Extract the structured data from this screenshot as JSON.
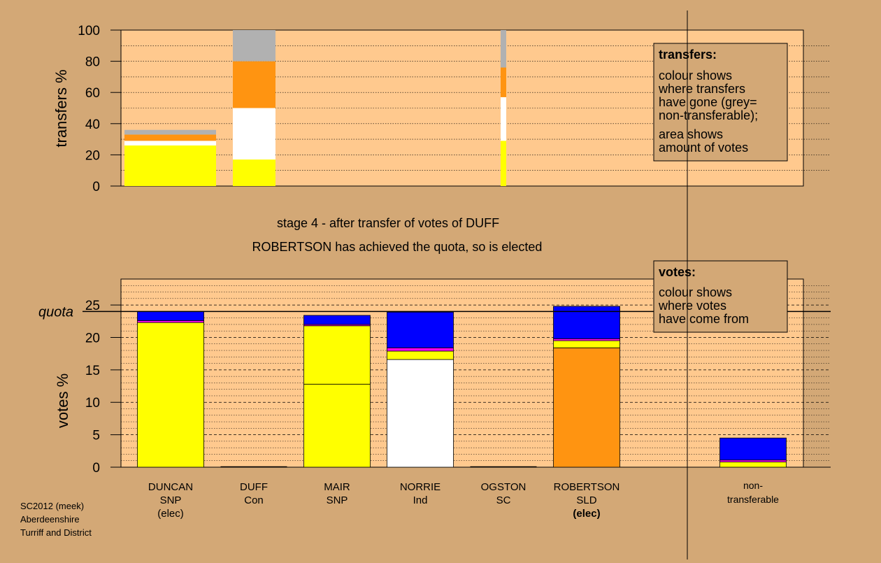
{
  "colors": {
    "background": "#d3a876",
    "plot_bg": "#ffc98e",
    "SNP": "#ffff00",
    "Con": "#0000ff",
    "Ind": "#ffffff",
    "SC": "#ff00ff",
    "SLD": "#ff9411",
    "nontransferable": "#b1b1b1",
    "line": "#000000"
  },
  "stage_text": {
    "line1": "stage 4 - after transfer of votes of DUFF",
    "line2": "ROBERTSON has achieved the quota, so is elected"
  },
  "footer": {
    "line1": "SC2012 (meek)",
    "line2": "Aberdeenshire",
    "line3": "Turriff and District"
  },
  "candidates": [
    {
      "name": "DUNCAN",
      "party": "SNP",
      "status": "(elec)"
    },
    {
      "name": "DUFF",
      "party": "Con",
      "status": ""
    },
    {
      "name": "MAIR",
      "party": "SNP",
      "status": ""
    },
    {
      "name": "NORRIE",
      "party": "Ind",
      "status": ""
    },
    {
      "name": "OGSTON",
      "party": "SC",
      "status": ""
    },
    {
      "name": "ROBERTSON",
      "party": "SLD",
      "status": "(elec)"
    },
    {
      "name": "non-",
      "party": "transferable",
      "status": ""
    }
  ],
  "chart_data": [
    {
      "type": "bar",
      "stacked": true,
      "ylabel": "transfers %",
      "ylim": [
        0,
        100
      ],
      "yticks": [
        0,
        20,
        40,
        60,
        80,
        100
      ],
      "legend": {
        "title": "transfers:",
        "line1": "colour shows",
        "line2": "where transfers",
        "line3": "have gone (grey=",
        "line4": "non-transferable);",
        "line5": "area shows",
        "line6": "amount of votes"
      },
      "bars": [
        {
          "source": "DUNCAN",
          "segments": [
            {
              "party": "SNP",
              "value": 26
            },
            {
              "party": "Ind",
              "value": 3
            },
            {
              "party": "SLD",
              "value": 4
            },
            {
              "party": "nontransferable",
              "value": 3
            }
          ]
        },
        {
          "source": "DUFF",
          "segments": [
            {
              "party": "SNP",
              "value": 17
            },
            {
              "party": "Ind",
              "value": 33
            },
            {
              "party": "SLD",
              "value": 30
            },
            {
              "party": "nontransferable",
              "value": 20
            }
          ]
        },
        {
          "source": "ROBERTSON",
          "segments": [
            {
              "party": "SNP",
              "value": 29
            },
            {
              "party": "Ind",
              "value": 28
            },
            {
              "party": "SLD",
              "value": 19
            },
            {
              "party": "nontransferable",
              "value": 24
            }
          ]
        }
      ]
    },
    {
      "type": "bar",
      "stacked": true,
      "ylabel": "votes %",
      "ylim": [
        0,
        29
      ],
      "yticks": [
        0,
        5,
        10,
        15,
        20,
        25
      ],
      "quota": 24,
      "quota_label": "quota",
      "legend": {
        "title": "votes:",
        "line1": "colour shows",
        "line2": "where votes",
        "line3": "have come from"
      },
      "categories": [
        "DUNCAN",
        "DUFF",
        "MAIR",
        "NORRIE",
        "OGSTON",
        "ROBERTSON",
        "non-transferable"
      ],
      "bars": [
        {
          "candidate": "DUNCAN",
          "segments": [
            {
              "party": "SNP",
              "value": 22.3
            },
            {
              "party": "SC",
              "value": 0.3
            },
            {
              "party": "Con",
              "value": 1.4
            }
          ]
        },
        {
          "candidate": "DUFF",
          "segments": []
        },
        {
          "candidate": "MAIR",
          "segments": [
            {
              "party": "SNP",
              "value": 12.8
            },
            {
              "party": "SNP",
              "value": 9.0
            },
            {
              "party": "SC",
              "value": 0.2
            },
            {
              "party": "Con",
              "value": 1.4
            }
          ]
        },
        {
          "candidate": "NORRIE",
          "segments": [
            {
              "party": "Ind",
              "value": 16.6
            },
            {
              "party": "SNP",
              "value": 1.3
            },
            {
              "party": "SC",
              "value": 0.5
            },
            {
              "party": "Con",
              "value": 5.5
            }
          ]
        },
        {
          "candidate": "OGSTON",
          "segments": []
        },
        {
          "candidate": "ROBERTSON",
          "segments": [
            {
              "party": "SLD",
              "value": 18.4
            },
            {
              "party": "SNP",
              "value": 1.1
            },
            {
              "party": "SC",
              "value": 0.3
            },
            {
              "party": "Con",
              "value": 5.0
            }
          ]
        },
        {
          "candidate": "non-transferable",
          "segments": [
            {
              "party": "SNP",
              "value": 0.8
            },
            {
              "party": "SC",
              "value": 0.3
            },
            {
              "party": "Con",
              "value": 3.4
            }
          ]
        }
      ]
    }
  ]
}
